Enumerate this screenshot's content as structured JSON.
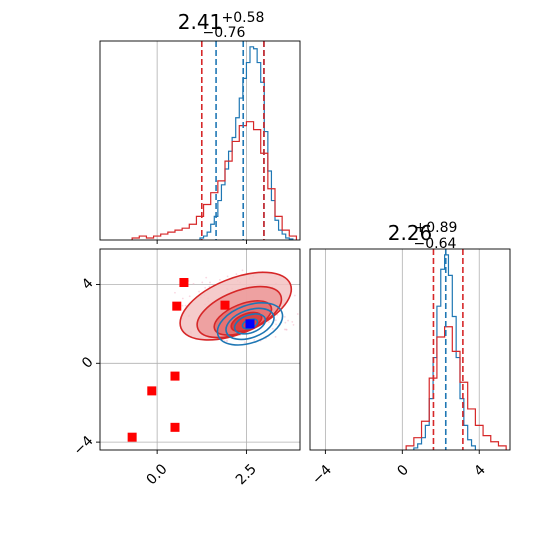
{
  "chart_data": [
    {
      "panel": "hist-param-1",
      "type": "histogram",
      "title": {
        "main": "2.41",
        "sup": "+0.58",
        "sub": "−0.76"
      },
      "xlim": [
        -1.6,
        4.0
      ],
      "grid": true,
      "series": [
        {
          "color": "#1f77b4",
          "bin_edges": [
            1.2,
            1.3,
            1.4,
            1.5,
            1.6,
            1.7,
            1.8,
            1.9,
            2.0,
            2.1,
            2.2,
            2.3,
            2.4,
            2.5,
            2.6,
            2.7,
            2.8,
            2.9,
            3.0,
            3.1,
            3.2,
            3.3,
            3.4,
            3.5,
            3.6,
            3.7,
            3.8
          ],
          "counts": [
            0.01,
            0.02,
            0.04,
            0.08,
            0.12,
            0.2,
            0.28,
            0.36,
            0.45,
            0.52,
            0.62,
            0.72,
            0.82,
            0.9,
            0.98,
            0.97,
            0.9,
            0.8,
            0.55,
            0.35,
            0.2,
            0.1,
            0.05,
            0.03,
            0.01,
            0.005
          ]
        },
        {
          "color": "#d62728",
          "bin_edges": [
            -0.7,
            -0.5,
            -0.3,
            -0.1,
            0.1,
            0.3,
            0.5,
            0.7,
            0.9,
            1.1,
            1.3,
            1.5,
            1.7,
            1.9,
            2.1,
            2.3,
            2.5,
            2.7,
            2.9,
            3.1,
            3.3,
            3.5,
            3.7,
            3.9
          ],
          "counts": [
            0.01,
            0.02,
            0.01,
            0.02,
            0.03,
            0.04,
            0.05,
            0.06,
            0.08,
            0.12,
            0.18,
            0.24,
            0.3,
            0.4,
            0.5,
            0.58,
            0.6,
            0.56,
            0.44,
            0.26,
            0.12,
            0.05,
            0.02
          ]
        }
      ],
      "quantiles": [
        {
          "color": "#1f77b4",
          "values": [
            1.65,
            2.41,
            2.99
          ]
        },
        {
          "color": "#d62728",
          "values": [
            1.25,
            2.99
          ]
        }
      ]
    },
    {
      "panel": "hist-param-2",
      "type": "histogram",
      "title": {
        "main": "2.26",
        "sup": "+0.89",
        "sub": "−0.64"
      },
      "xlim": [
        -4.8,
        5.6
      ],
      "x_ticks": [
        -4,
        0,
        4
      ],
      "x_tick_labels": [
        "−4",
        "0",
        "4"
      ],
      "grid": true,
      "series": [
        {
          "color": "#1f77b4",
          "bin_edges": [
            0.6,
            0.8,
            1.0,
            1.2,
            1.4,
            1.6,
            1.8,
            2.0,
            2.2,
            2.4,
            2.6,
            2.8,
            3.0,
            3.2,
            3.4,
            3.6,
            3.8
          ],
          "counts": [
            0.01,
            0.03,
            0.06,
            0.12,
            0.25,
            0.45,
            0.7,
            0.88,
            0.95,
            0.85,
            0.65,
            0.45,
            0.25,
            0.12,
            0.05,
            0.02
          ]
        },
        {
          "color": "#d62728",
          "bin_edges": [
            0.2,
            0.6,
            1.0,
            1.4,
            1.8,
            2.2,
            2.6,
            3.0,
            3.4,
            3.8,
            4.2,
            4.6,
            5.0,
            5.4
          ],
          "counts": [
            0.02,
            0.06,
            0.14,
            0.35,
            0.55,
            0.6,
            0.48,
            0.33,
            0.2,
            0.12,
            0.07,
            0.04,
            0.02
          ]
        }
      ],
      "quantiles": [
        {
          "color": "#1f77b4",
          "values": [
            2.26
          ]
        },
        {
          "color": "#d62728",
          "values": [
            1.62,
            3.15
          ]
        }
      ]
    },
    {
      "panel": "scatter-joint",
      "type": "scatter",
      "xlim": [
        -1.6,
        4.0
      ],
      "ylim": [
        -4.4,
        5.8
      ],
      "x_ticks": [
        0.0,
        2.5
      ],
      "x_tick_labels": [
        "0.0",
        "2.5"
      ],
      "y_ticks": [
        -4,
        0,
        4
      ],
      "y_tick_labels": [
        "−4",
        "0",
        "4"
      ],
      "grid": true,
      "contours": [
        {
          "color": "#d62728",
          "filled": true,
          "levels": [
            {
              "cx": 2.2,
              "cy": 2.9,
              "rx": 1.65,
              "ry": 1.4,
              "rot": -22
            },
            {
              "cx": 2.3,
              "cy": 2.6,
              "rx": 1.25,
              "ry": 1.05,
              "rot": -22
            },
            {
              "cx": 2.4,
              "cy": 2.3,
              "rx": 0.85,
              "ry": 0.7,
              "rot": -22
            },
            {
              "cx": 2.5,
              "cy": 2.1,
              "rx": 0.45,
              "ry": 0.4,
              "rot": -22
            }
          ]
        },
        {
          "color": "#1f77b4",
          "filled": false,
          "levels": [
            {
              "cx": 2.6,
              "cy": 2.0,
              "rx": 0.95,
              "ry": 0.95,
              "rot": -20
            },
            {
              "cx": 2.6,
              "cy": 2.0,
              "rx": 0.7,
              "ry": 0.7,
              "rot": -20
            },
            {
              "cx": 2.6,
              "cy": 2.0,
              "rx": 0.45,
              "ry": 0.45,
              "rot": -20
            },
            {
              "cx": 2.6,
              "cy": 2.0,
              "rx": 0.22,
              "ry": 0.22,
              "rot": -20
            }
          ]
        }
      ],
      "points": [
        {
          "x": 0.75,
          "y": 4.1,
          "color": "#ff0000"
        },
        {
          "x": 0.55,
          "y": 2.9,
          "color": "#ff0000"
        },
        {
          "x": 1.9,
          "y": 2.95,
          "color": "#ff0000"
        },
        {
          "x": 0.5,
          "y": -0.65,
          "color": "#ff0000"
        },
        {
          "x": -0.15,
          "y": -1.4,
          "color": "#ff0000"
        },
        {
          "x": 0.5,
          "y": -3.25,
          "color": "#ff0000"
        },
        {
          "x": -0.7,
          "y": -3.75,
          "color": "#ff0000"
        },
        {
          "x": 2.6,
          "y": 2.0,
          "color": "#0000ff"
        }
      ]
    }
  ]
}
